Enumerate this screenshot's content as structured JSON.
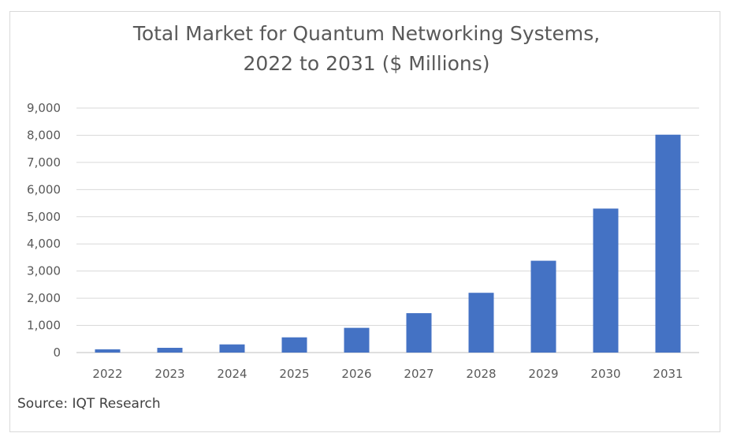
{
  "chart_data": {
    "type": "bar",
    "title_line1": "Total Market for Quantum Networking Systems,",
    "title_line2": "2022 to 2031 ($ Millions)",
    "categories": [
      "2022",
      "2023",
      "2024",
      "2025",
      "2026",
      "2027",
      "2028",
      "2029",
      "2030",
      "2031"
    ],
    "values": [
      120,
      175,
      300,
      560,
      910,
      1450,
      2200,
      3380,
      5300,
      8020
    ],
    "ylim": [
      0,
      9000
    ],
    "yticks": [
      0,
      1000,
      2000,
      3000,
      4000,
      5000,
      6000,
      7000,
      8000,
      9000
    ],
    "ytick_labels": [
      "0",
      "1,000",
      "2,000",
      "3,000",
      "4,000",
      "5,000",
      "6,000",
      "7,000",
      "8,000",
      "9,000"
    ],
    "bar_color": "#4472c4",
    "grid": true,
    "legend": "none"
  },
  "source": "Source: IQT Research"
}
